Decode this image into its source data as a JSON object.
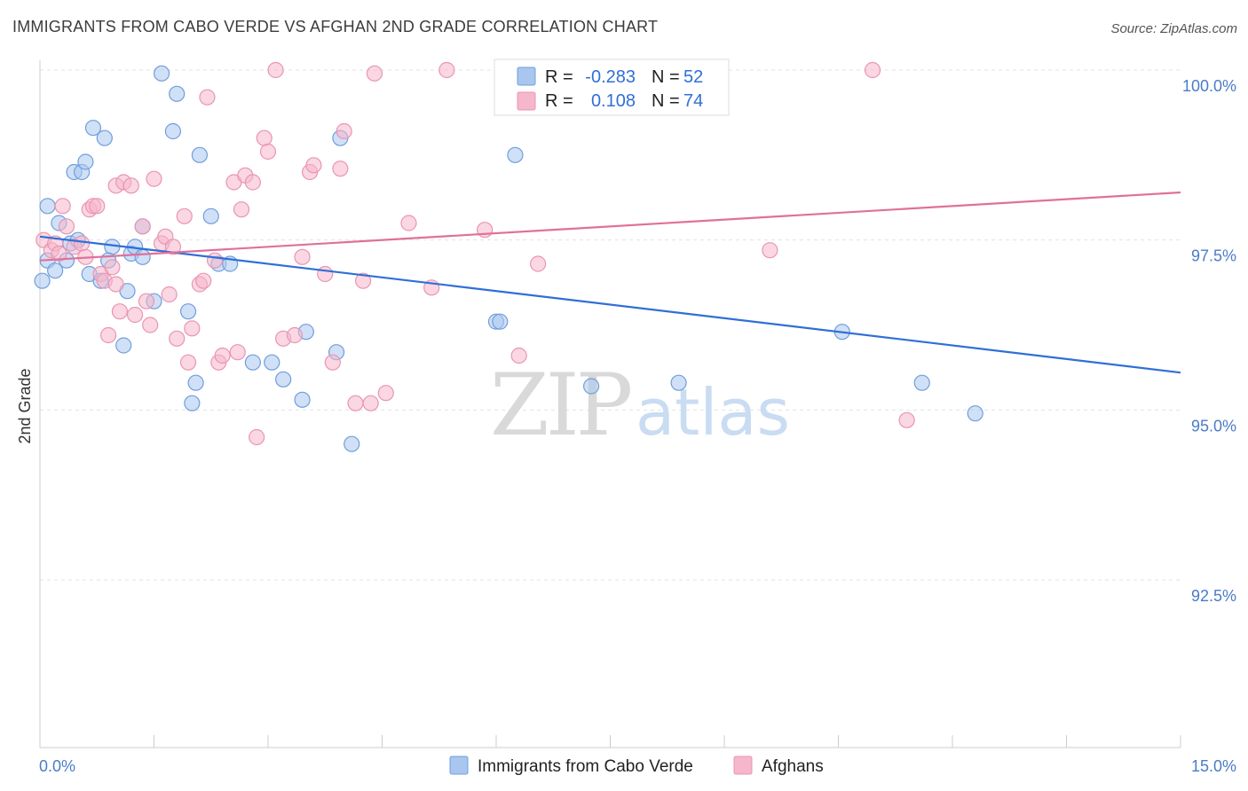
{
  "title": "IMMIGRANTS FROM CABO VERDE VS AFGHAN 2ND GRADE CORRELATION CHART",
  "source": "Source: ZipAtlas.com",
  "watermark": {
    "zip": "ZIP",
    "atlas": "atlas"
  },
  "legend": {
    "rows": [
      {
        "r_label": "R =",
        "r_value": "-0.283",
        "n_label": "N =",
        "n_value": "52",
        "color": "#a9c6ee"
      },
      {
        "r_label": "R =",
        "r_value": "0.108",
        "n_label": "N =",
        "n_value": "74",
        "color": "#f6b6cb"
      }
    ]
  },
  "bottom_legend": [
    {
      "label": "Immigrants from Cabo Verde",
      "color": "#a9c6ee"
    },
    {
      "label": "Afghans",
      "color": "#f6b6cb"
    }
  ],
  "chart_data": {
    "type": "scatter",
    "ylabel": "2nd Grade",
    "xlabel": "",
    "xlim": [
      0,
      15
    ],
    "ylim": [
      90.3,
      100.5
    ],
    "x_tick_labels": [
      {
        "value": 0,
        "label": "0.0%"
      },
      {
        "value": 15,
        "label": "15.0%"
      }
    ],
    "y_tick_labels": [
      {
        "value": 100,
        "label": "100.0%"
      },
      {
        "value": 97.5,
        "label": "97.5%"
      },
      {
        "value": 95,
        "label": "95.0%"
      },
      {
        "value": 92.5,
        "label": "92.5%"
      }
    ],
    "grid": true,
    "legend_position": "top-center",
    "series": [
      {
        "name": "Immigrants from Cabo Verde",
        "color": "#6f9fdc",
        "fill": "#a9c6ee",
        "trend": {
          "x": [
            0,
            15
          ],
          "y": [
            97.55,
            95.55
          ],
          "color": "#2f6fd6"
        },
        "points": [
          [
            0.03,
            96.9
          ],
          [
            0.1,
            97.2
          ],
          [
            0.1,
            98.0
          ],
          [
            0.2,
            97.05
          ],
          [
            0.25,
            97.75
          ],
          [
            0.35,
            97.2
          ],
          [
            0.4,
            97.45
          ],
          [
            0.45,
            98.5
          ],
          [
            0.5,
            97.5
          ],
          [
            0.55,
            98.5
          ],
          [
            0.6,
            98.65
          ],
          [
            0.65,
            97.0
          ],
          [
            0.7,
            99.15
          ],
          [
            0.8,
            96.9
          ],
          [
            0.85,
            99.0
          ],
          [
            0.95,
            97.4
          ],
          [
            0.9,
            97.2
          ],
          [
            1.1,
            95.95
          ],
          [
            1.15,
            96.75
          ],
          [
            1.2,
            97.3
          ],
          [
            1.25,
            97.4
          ],
          [
            1.35,
            97.25
          ],
          [
            1.35,
            97.7
          ],
          [
            1.5,
            96.6
          ],
          [
            1.6,
            99.95
          ],
          [
            1.75,
            99.1
          ],
          [
            1.8,
            99.65
          ],
          [
            1.95,
            96.45
          ],
          [
            2.0,
            95.1
          ],
          [
            2.05,
            95.4
          ],
          [
            2.1,
            98.75
          ],
          [
            2.25,
            97.85
          ],
          [
            2.35,
            97.15
          ],
          [
            2.5,
            97.15
          ],
          [
            2.8,
            95.7
          ],
          [
            3.05,
            95.7
          ],
          [
            3.2,
            95.45
          ],
          [
            3.45,
            95.15
          ],
          [
            3.5,
            96.15
          ],
          [
            3.9,
            95.85
          ],
          [
            3.95,
            99.0
          ],
          [
            4.1,
            94.5
          ],
          [
            6.0,
            96.3
          ],
          [
            6.05,
            96.3
          ],
          [
            6.25,
            98.75
          ],
          [
            7.25,
            95.35
          ],
          [
            7.9,
            100.0
          ],
          [
            8.4,
            95.4
          ],
          [
            8.75,
            99.9
          ],
          [
            10.55,
            96.15
          ],
          [
            11.6,
            95.4
          ],
          [
            12.3,
            94.95
          ]
        ]
      },
      {
        "name": "Afghans",
        "color": "#e995b3",
        "fill": "#f6b6cb",
        "trend": {
          "x": [
            0,
            15
          ],
          "y": [
            97.2,
            98.2
          ],
          "color": "#e0709a"
        },
        "points": [
          [
            0.05,
            97.5
          ],
          [
            0.15,
            97.35
          ],
          [
            0.2,
            97.45
          ],
          [
            0.25,
            97.3
          ],
          [
            0.3,
            98.0
          ],
          [
            0.35,
            97.7
          ],
          [
            0.45,
            97.4
          ],
          [
            0.55,
            97.45
          ],
          [
            0.6,
            97.25
          ],
          [
            0.65,
            97.95
          ],
          [
            0.7,
            98.0
          ],
          [
            0.75,
            98.0
          ],
          [
            0.8,
            97.0
          ],
          [
            0.85,
            96.9
          ],
          [
            0.9,
            96.1
          ],
          [
            0.95,
            97.1
          ],
          [
            1.0,
            96.85
          ],
          [
            1.05,
            96.45
          ],
          [
            1.0,
            98.3
          ],
          [
            1.1,
            98.35
          ],
          [
            1.2,
            98.3
          ],
          [
            1.25,
            96.4
          ],
          [
            1.35,
            97.7
          ],
          [
            1.4,
            96.6
          ],
          [
            1.45,
            96.25
          ],
          [
            1.5,
            98.4
          ],
          [
            1.6,
            97.45
          ],
          [
            1.65,
            97.55
          ],
          [
            1.7,
            96.7
          ],
          [
            1.75,
            97.4
          ],
          [
            1.8,
            96.05
          ],
          [
            1.9,
            97.85
          ],
          [
            1.95,
            95.7
          ],
          [
            2.0,
            96.2
          ],
          [
            2.1,
            96.85
          ],
          [
            2.15,
            96.9
          ],
          [
            2.2,
            99.6
          ],
          [
            2.3,
            97.2
          ],
          [
            2.35,
            95.7
          ],
          [
            2.4,
            95.8
          ],
          [
            2.55,
            98.35
          ],
          [
            2.6,
            95.85
          ],
          [
            2.65,
            97.95
          ],
          [
            2.7,
            98.45
          ],
          [
            2.8,
            98.35
          ],
          [
            2.85,
            94.6
          ],
          [
            2.95,
            99.0
          ],
          [
            3.0,
            98.8
          ],
          [
            3.1,
            100.0
          ],
          [
            3.2,
            96.05
          ],
          [
            3.35,
            96.1
          ],
          [
            3.45,
            97.25
          ],
          [
            3.55,
            98.5
          ],
          [
            3.6,
            98.6
          ],
          [
            3.75,
            97.0
          ],
          [
            3.85,
            95.7
          ],
          [
            3.95,
            98.55
          ],
          [
            4.0,
            99.1
          ],
          [
            4.15,
            95.1
          ],
          [
            4.25,
            96.9
          ],
          [
            4.35,
            95.1
          ],
          [
            4.4,
            99.95
          ],
          [
            4.55,
            95.25
          ],
          [
            4.85,
            97.75
          ],
          [
            5.15,
            96.8
          ],
          [
            5.35,
            100.0
          ],
          [
            5.85,
            97.65
          ],
          [
            6.3,
            95.8
          ],
          [
            6.55,
            97.15
          ],
          [
            7.85,
            100.0
          ],
          [
            8.85,
            100.0
          ],
          [
            9.6,
            97.35
          ],
          [
            10.95,
            100.0
          ],
          [
            11.4,
            94.85
          ]
        ]
      }
    ]
  }
}
